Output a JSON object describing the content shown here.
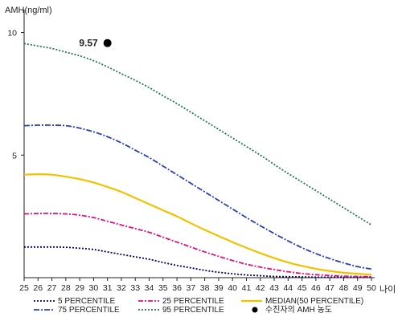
{
  "chart_data": {
    "type": "line",
    "ylabel": "AMH(ng/ml)",
    "xlabel": "나이",
    "xlim": [
      25,
      50
    ],
    "ylim": [
      0,
      11
    ],
    "x_ticks": [
      25,
      26,
      27,
      28,
      29,
      30,
      31,
      32,
      33,
      34,
      35,
      36,
      37,
      38,
      39,
      40,
      41,
      42,
      43,
      44,
      45,
      46,
      47,
      48,
      49,
      50
    ],
    "y_ticks": [
      5,
      10
    ],
    "grid": false,
    "legend_position": "bottom",
    "x": [
      25,
      26,
      27,
      28,
      29,
      30,
      31,
      32,
      33,
      34,
      35,
      36,
      37,
      38,
      39,
      40,
      41,
      42,
      43,
      44,
      45,
      46,
      47,
      48,
      49,
      50
    ],
    "series": [
      {
        "name": "5 PERCENTILE",
        "color": "#000066",
        "dash": "2,2",
        "values": [
          1.25,
          1.25,
          1.25,
          1.24,
          1.2,
          1.15,
          1.05,
          0.95,
          0.85,
          0.75,
          0.62,
          0.5,
          0.4,
          0.3,
          0.22,
          0.16,
          0.11,
          0.08,
          0.05,
          0.04,
          0.03,
          0.02,
          0.02,
          0.02,
          0.02,
          0.02
        ]
      },
      {
        "name": "25 PERCENTILE",
        "color": "#e0107e",
        "dash": "6,2,2,2",
        "values": [
          2.6,
          2.62,
          2.62,
          2.6,
          2.55,
          2.45,
          2.3,
          2.15,
          2.0,
          1.85,
          1.65,
          1.45,
          1.25,
          1.05,
          0.87,
          0.7,
          0.55,
          0.43,
          0.33,
          0.24,
          0.17,
          0.12,
          0.09,
          0.06,
          0.05,
          0.04
        ]
      },
      {
        "name": "MEDIAN(50 PERCENTILE)",
        "color": "#f2c200",
        "dash": "",
        "values": [
          4.2,
          4.22,
          4.2,
          4.12,
          4.02,
          3.88,
          3.7,
          3.5,
          3.25,
          3.0,
          2.75,
          2.5,
          2.22,
          1.95,
          1.7,
          1.45,
          1.22,
          1.0,
          0.8,
          0.62,
          0.48,
          0.36,
          0.27,
          0.2,
          0.16,
          0.12
        ]
      },
      {
        "name": "75 PERCENTILE",
        "color": "#2b3fb5",
        "dash": "7,2,2,2",
        "values": [
          6.2,
          6.22,
          6.22,
          6.2,
          6.1,
          5.95,
          5.75,
          5.5,
          5.2,
          4.9,
          4.55,
          4.2,
          3.85,
          3.5,
          3.15,
          2.8,
          2.45,
          2.12,
          1.8,
          1.5,
          1.22,
          0.98,
          0.78,
          0.6,
          0.45,
          0.35
        ]
      },
      {
        "name": "95 PERCENTILE",
        "color": "#1f7a4a",
        "dash": "2,2",
        "values": [
          9.55,
          9.45,
          9.35,
          9.2,
          9.05,
          8.85,
          8.6,
          8.32,
          8.05,
          7.75,
          7.42,
          7.1,
          6.75,
          6.4,
          6.05,
          5.7,
          5.35,
          5.0,
          4.62,
          4.25,
          3.9,
          3.55,
          3.2,
          2.85,
          2.5,
          2.15
        ]
      }
    ],
    "point": {
      "name": "수진자의 AMH 농도",
      "x": 31,
      "y": 9.57,
      "label": "9.57",
      "color": "#000000"
    }
  }
}
